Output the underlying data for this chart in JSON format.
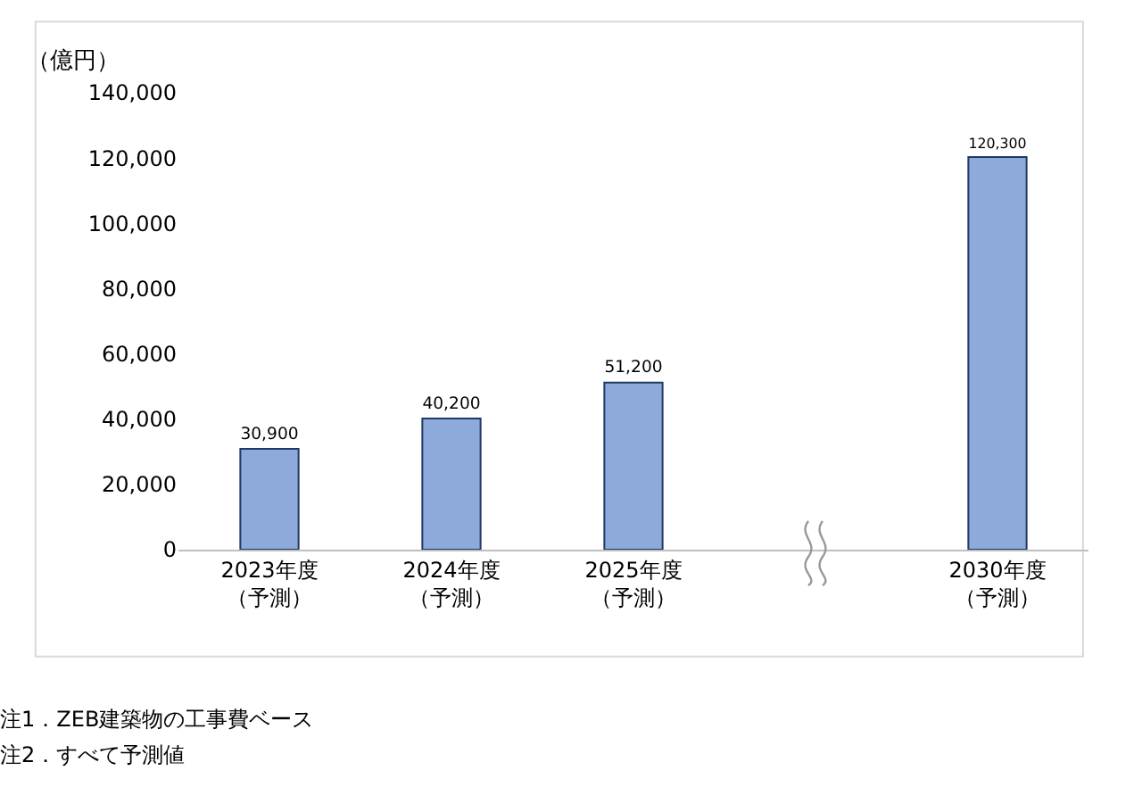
{
  "chart_data": {
    "type": "bar",
    "ylabel": "（億円）",
    "categories": [
      "2023年度（予測）",
      "2024年度（予測）",
      "2025年度（予測）",
      null,
      "2030年度（予測）"
    ],
    "values": [
      30900,
      40200,
      51200,
      null,
      120300
    ],
    "value_labels": [
      "30,900",
      "40,200",
      "51,200",
      null,
      "120,300"
    ],
    "color": "#8eaadb",
    "ylim": [
      0,
      140000
    ],
    "yticks": [
      {
        "value": 0,
        "label": "0"
      },
      {
        "value": 20000,
        "label": "20,000"
      },
      {
        "value": 40000,
        "label": "40,000"
      },
      {
        "value": 60000,
        "label": "60,000"
      },
      {
        "value": 80000,
        "label": "80,000"
      },
      {
        "value": 100000,
        "label": "100,000"
      },
      {
        "value": 120000,
        "label": "120,000"
      },
      {
        "value": 140000,
        "label": "140,000"
      }
    ],
    "grid": false,
    "legend": false,
    "annotations": [
      "注1．ZEB建築物の工事費ベース",
      "注2．すべて予測値"
    ]
  }
}
